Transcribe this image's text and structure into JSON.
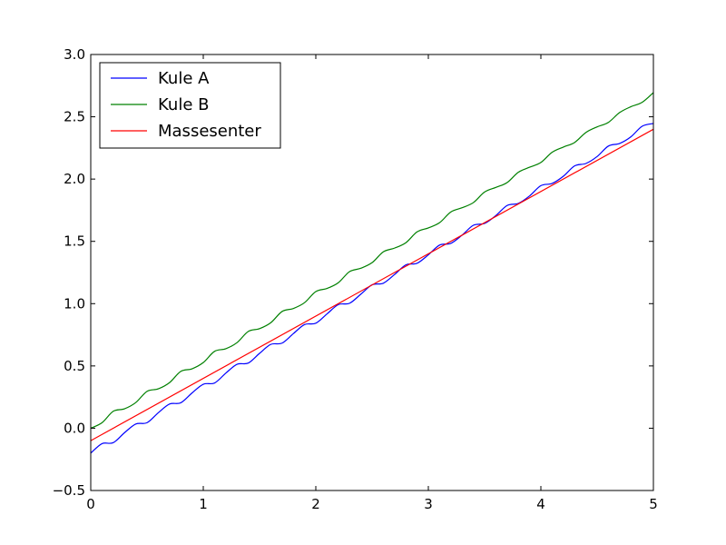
{
  "chart_data": {
    "type": "line",
    "title": "",
    "xlabel": "",
    "ylabel": "",
    "xlim": [
      0,
      5
    ],
    "ylim": [
      -0.5,
      3.0
    ],
    "xticks": [
      0,
      1,
      2,
      3,
      4,
      5
    ],
    "xtick_labels": [
      "0",
      "1",
      "2",
      "3",
      "4",
      "5"
    ],
    "yticks": [
      -0.5,
      0.0,
      0.5,
      1.0,
      1.5,
      2.0,
      2.5,
      3.0
    ],
    "ytick_labels": [
      "−0.5",
      "0.0",
      "0.5",
      "1.0",
      "1.5",
      "2.0",
      "2.5",
      "3.0"
    ],
    "grid": false,
    "legend_position": "top-left",
    "series": [
      {
        "name": "Kule A",
        "color": "#0000ff",
        "x": [
          0,
          0.1,
          0.2,
          0.3,
          0.4,
          0.5,
          0.6,
          0.7,
          0.8,
          0.9,
          1.0,
          1.1,
          1.2,
          1.3,
          1.4,
          1.5,
          1.6,
          1.7,
          1.8,
          1.9,
          2.0,
          2.1,
          2.2,
          2.3,
          2.4,
          2.5,
          2.6,
          2.7,
          2.8,
          2.9,
          3.0,
          3.1,
          3.2,
          3.3,
          3.4,
          3.5,
          3.6,
          3.7,
          3.8,
          3.9,
          4.0,
          4.1,
          4.2,
          4.3,
          4.4,
          4.5,
          4.6,
          4.7,
          4.8,
          4.9,
          5.0
        ],
        "y": [
          -0.2,
          -0.124,
          -0.116,
          -0.036,
          0.034,
          0.044,
          0.124,
          0.194,
          0.204,
          0.283,
          0.353,
          0.363,
          0.442,
          0.513,
          0.523,
          0.601,
          0.673,
          0.683,
          0.759,
          0.832,
          0.843,
          0.918,
          0.992,
          1.003,
          1.076,
          1.151,
          1.164,
          1.234,
          1.311,
          1.324,
          1.392,
          1.47,
          1.484,
          1.55,
          1.629,
          1.644,
          1.707,
          1.788,
          1.805,
          1.865,
          1.947,
          1.965,
          2.023,
          2.106,
          2.125,
          2.181,
          2.265,
          2.286,
          2.339,
          2.424,
          2.446
        ]
      },
      {
        "name": "Kule B",
        "color": "#008000",
        "x": [
          0,
          0.1,
          0.2,
          0.3,
          0.4,
          0.5,
          0.6,
          0.7,
          0.8,
          0.9,
          1.0,
          1.1,
          1.2,
          1.3,
          1.4,
          1.5,
          1.6,
          1.7,
          1.8,
          1.9,
          2.0,
          2.1,
          2.2,
          2.3,
          2.4,
          2.5,
          2.6,
          2.7,
          2.8,
          2.9,
          3.0,
          3.1,
          3.2,
          3.3,
          3.4,
          3.5,
          3.6,
          3.7,
          3.8,
          3.9,
          4.0,
          4.1,
          4.2,
          4.3,
          4.4,
          4.5,
          4.6,
          4.7,
          4.8,
          4.9,
          5.0
        ],
        "y": [
          0.0,
          0.044,
          0.136,
          0.156,
          0.206,
          0.296,
          0.316,
          0.366,
          0.456,
          0.477,
          0.527,
          0.617,
          0.638,
          0.687,
          0.777,
          0.799,
          0.847,
          0.937,
          0.961,
          1.008,
          1.097,
          1.122,
          1.168,
          1.257,
          1.284,
          1.329,
          1.416,
          1.446,
          1.489,
          1.576,
          1.608,
          1.65,
          1.736,
          1.77,
          1.811,
          1.896,
          1.933,
          1.972,
          2.055,
          2.095,
          2.133,
          2.215,
          2.257,
          2.294,
          2.374,
          2.419,
          2.455,
          2.534,
          2.581,
          2.616,
          2.694
        ]
      },
      {
        "name": "Massesenter",
        "color": "#ff0000",
        "x": [
          0,
          5
        ],
        "y": [
          -0.1,
          2.4
        ]
      }
    ]
  }
}
